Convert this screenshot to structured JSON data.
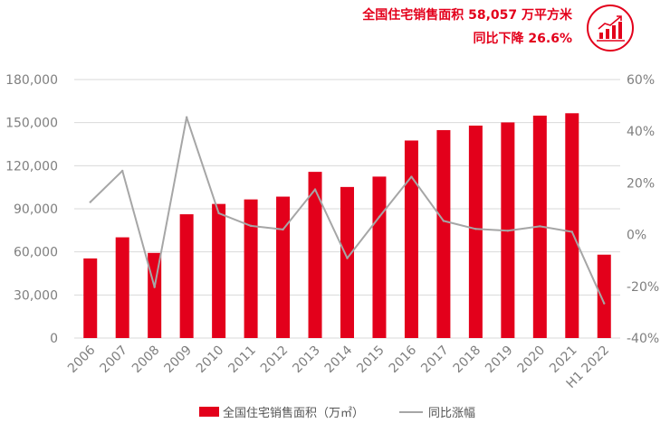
{
  "headline": {
    "line1": "全国住宅销售面积 58,057 万平方米",
    "line2": "同比下降 26.6%",
    "icon": "growth-chart-icon"
  },
  "colors": {
    "bar": "#e3001b",
    "line": "#a6a6a6",
    "axis_text": "#7f7f7f",
    "grid": "#d9d9d9"
  },
  "chart_data": {
    "type": "bar",
    "title": "",
    "categories": [
      "2006",
      "2007",
      "2008",
      "2009",
      "2010",
      "2011",
      "2012",
      "2013",
      "2014",
      "2015",
      "2016",
      "2017",
      "2018",
      "2019",
      "2020",
      "2021",
      "H1 2022"
    ],
    "series": [
      {
        "name": "全国住宅销售面积（万㎡）",
        "type": "bar",
        "axis": "left",
        "values": [
          55423,
          70136,
          59280,
          86185,
          93377,
          96528,
          98468,
          115723,
          105188,
          112412,
          137540,
          144789,
          147929,
          150144,
          154878,
          156532,
          58057
        ]
      },
      {
        "name": "同比涨幅",
        "type": "line",
        "axis": "right",
        "values": [
          12.6,
          24.7,
          -20.3,
          45.4,
          8.3,
          3.4,
          2.0,
          17.5,
          -9.1,
          6.9,
          22.4,
          5.3,
          2.2,
          1.5,
          3.2,
          1.1,
          -26.6
        ]
      }
    ],
    "ylim_left": [
      0,
      180000
    ],
    "yticks_left": [
      "0",
      "30,000",
      "60,000",
      "90,000",
      "120,000",
      "150,000",
      "180,000"
    ],
    "ylim_right": [
      -40,
      60
    ],
    "yticks_right": [
      "-40%",
      "-20%",
      "0%",
      "20%",
      "40%",
      "60%"
    ],
    "grid": true,
    "legend": "bottom"
  }
}
